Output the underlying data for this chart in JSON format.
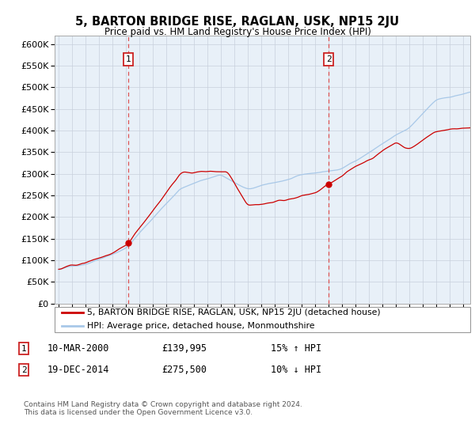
{
  "title": "5, BARTON BRIDGE RISE, RAGLAN, USK, NP15 2JU",
  "subtitle": "Price paid vs. HM Land Registry's House Price Index (HPI)",
  "legend_line1": "5, BARTON BRIDGE RISE, RAGLAN, USK, NP15 2JU (detached house)",
  "legend_line2": "HPI: Average price, detached house, Monmouthshire",
  "annotation1_date": "10-MAR-2000",
  "annotation1_price": "£139,995",
  "annotation1_hpi": "15% ↑ HPI",
  "annotation2_date": "19-DEC-2014",
  "annotation2_price": "£275,500",
  "annotation2_hpi": "10% ↓ HPI",
  "footer": "Contains HM Land Registry data © Crown copyright and database right 2024.\nThis data is licensed under the Open Government Licence v3.0.",
  "sale1_year": 2000.19,
  "sale1_price": 139995,
  "sale2_year": 2014.96,
  "sale2_price": 275500,
  "hpi_color": "#a8c8e8",
  "property_color": "#cc0000",
  "plot_bg": "#e8f0f8",
  "grid_color": "#c8d0dc",
  "ylim_max": 620000,
  "start_year": 1995,
  "end_year": 2025.5
}
